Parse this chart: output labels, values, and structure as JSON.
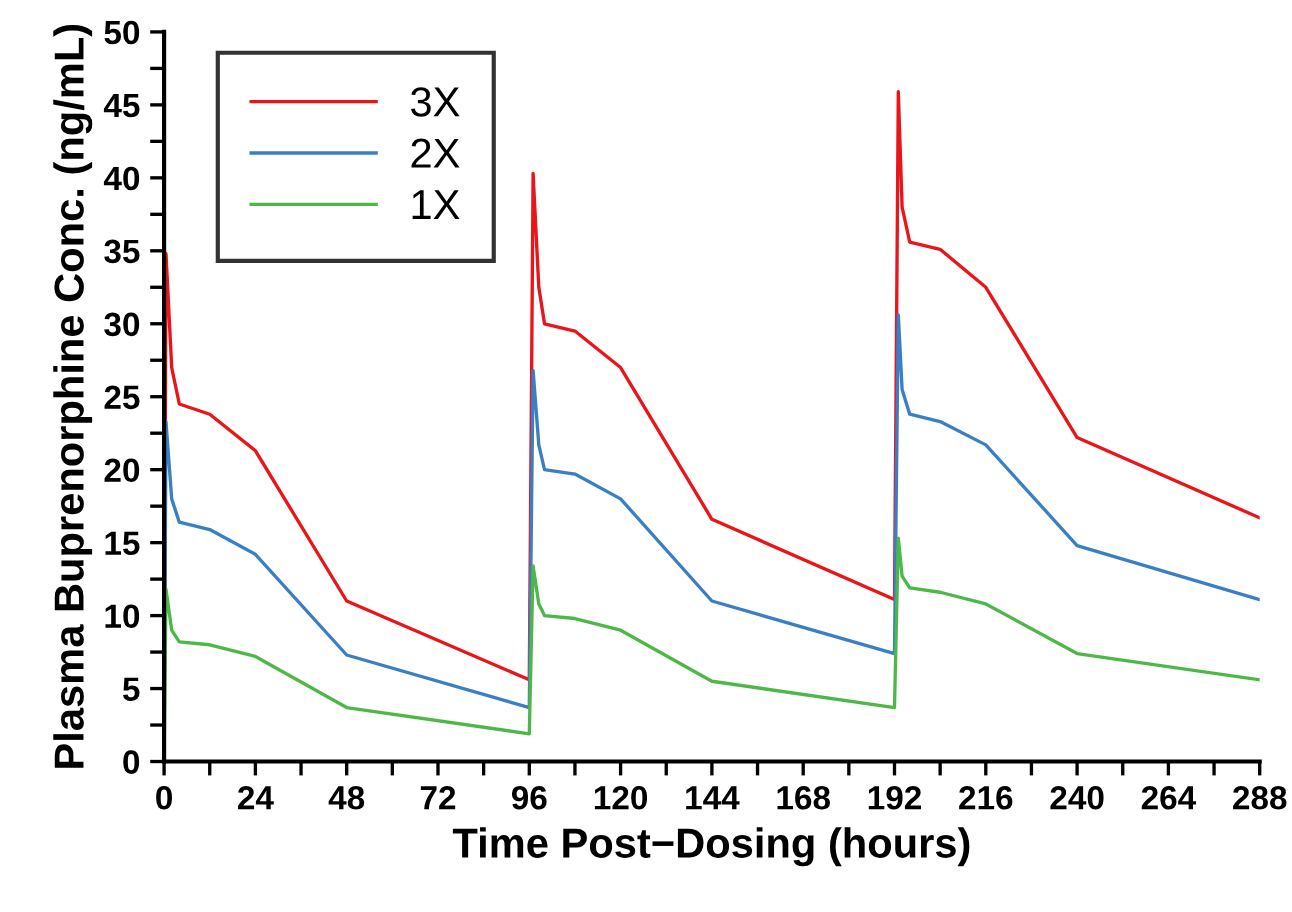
{
  "chart_data": {
    "type": "line",
    "xlabel": "Time Post−Dosing (hours)",
    "ylabel": "Plasma Buprenorphine Conc. (ng/mL)",
    "x": [
      0,
      0.5,
      2,
      4,
      12,
      24,
      48,
      96,
      97,
      98.5,
      100,
      108,
      120,
      144,
      192,
      193,
      194,
      196,
      204,
      216,
      240,
      288
    ],
    "series": [
      {
        "name": "3X",
        "color": "#e8161b",
        "values": [
          0,
          34.8,
          27,
          24.5,
          23.8,
          21.3,
          11,
          5.6,
          40.3,
          32.5,
          30,
          29.5,
          27,
          16.6,
          11.1,
          45.9,
          38,
          35.6,
          35.1,
          32.5,
          22.2,
          16.7
        ]
      },
      {
        "name": "2X",
        "color": "#3a7fc6",
        "values": [
          0,
          23.3,
          18,
          16.4,
          15.9,
          14.2,
          7.3,
          3.7,
          26.8,
          21.7,
          20,
          19.7,
          18,
          11,
          7.4,
          30.6,
          25.5,
          23.8,
          23.3,
          21.7,
          14.8,
          11.1
        ]
      },
      {
        "name": "1X",
        "color": "#4db848",
        "values": [
          0,
          11.8,
          9,
          8.2,
          8,
          7.2,
          3.7,
          1.9,
          13.4,
          10.8,
          10,
          9.8,
          9,
          5.5,
          3.7,
          15.3,
          12.7,
          11.9,
          11.6,
          10.8,
          7.4,
          5.6
        ]
      }
    ],
    "xlim": [
      0,
      288
    ],
    "ylim": [
      0,
      50
    ],
    "xticks": [
      0,
      {
        "value": 12,
        "label": null
      },
      24,
      {
        "value": 36,
        "label": null
      },
      48,
      {
        "value": 60,
        "label": null
      },
      72,
      {
        "value": 84,
        "label": null
      },
      96,
      {
        "value": 108,
        "label": null
      },
      120,
      {
        "value": 132,
        "label": null
      },
      144,
      {
        "value": 156,
        "label": null
      },
      168,
      {
        "value": 180,
        "label": null
      },
      192,
      {
        "value": 204,
        "label": null
      },
      216,
      {
        "value": 228,
        "label": null
      },
      240,
      {
        "value": 252,
        "label": null
      },
      264,
      {
        "value": 276,
        "label": null
      },
      288
    ],
    "yticks": [
      0,
      {
        "value": 2.5,
        "label": null
      },
      5,
      {
        "value": 7.5,
        "label": null
      },
      10,
      {
        "value": 12.5,
        "label": null
      },
      15,
      {
        "value": 17.5,
        "label": null
      },
      20,
      {
        "value": 22.5,
        "label": null
      },
      25,
      {
        "value": 27.5,
        "label": null
      },
      30,
      {
        "value": 32.5,
        "label": null
      },
      35,
      {
        "value": 37.5,
        "label": null
      },
      40,
      {
        "value": 42.5,
        "label": null
      },
      45,
      {
        "value": 47.5,
        "label": null
      },
      50
    ],
    "grid": false,
    "legend": "top left",
    "marker": "none",
    "line_style": "solid"
  }
}
